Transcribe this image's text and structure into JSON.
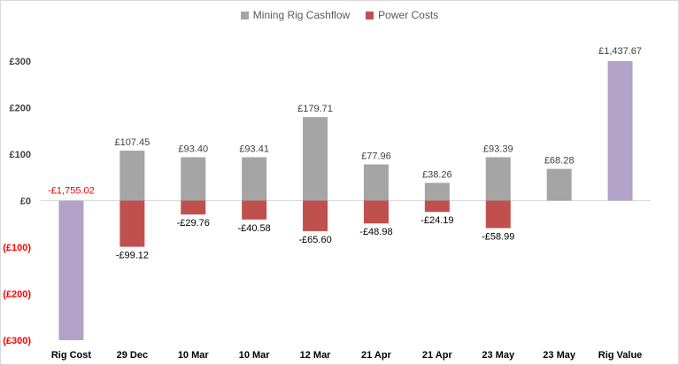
{
  "chart_data": {
    "type": "bar",
    "categories": [
      "Rig Cost",
      "29 Dec",
      "10 Mar",
      "10 Mar",
      "12 Mar",
      "21 Apr",
      "21 Apr",
      "23 May",
      "23 May",
      "Rig Value"
    ],
    "series": [
      {
        "name": "Mining Rig Cashflow",
        "values": [
          null,
          107.45,
          93.4,
          93.41,
          179.71,
          77.96,
          38.26,
          93.39,
          68.28,
          null
        ],
        "labels": [
          null,
          "£107.45",
          "£93.40",
          "£93.41",
          "£179.71",
          "£77.96",
          "£38.26",
          "£93.39",
          "£68.28",
          null
        ]
      },
      {
        "name": "Power Costs",
        "values": [
          null,
          -99.12,
          -29.76,
          -40.58,
          -65.6,
          -48.98,
          -24.19,
          -58.99,
          null,
          null
        ],
        "labels": [
          null,
          "-£99.12",
          "-£29.76",
          "-£40.58",
          "-£65.60",
          "-£48.98",
          "-£24.19",
          "-£58.99",
          null,
          null
        ]
      }
    ],
    "rig": {
      "cost_value": -1755.02,
      "cost_label": "-£1,755.02",
      "value_value": 1437.67,
      "value_label": "£1,437.67"
    },
    "ylim": [
      -300,
      300
    ],
    "yticks": [
      300,
      200,
      100,
      0,
      -100,
      -200,
      -300
    ],
    "ytick_labels": [
      "£300",
      "£200",
      "£100",
      "£0",
      "(£100)",
      "(£200)",
      "(£300)"
    ],
    "legend": "top",
    "colors": {
      "cashflow": "#a5a5a5",
      "power": "#c0504d",
      "rig": "#b3a2c7",
      "negative_text": "#ff0000",
      "text": "#404040",
      "axis_labels": "#000000",
      "gridline": "#d9d9d9"
    }
  }
}
